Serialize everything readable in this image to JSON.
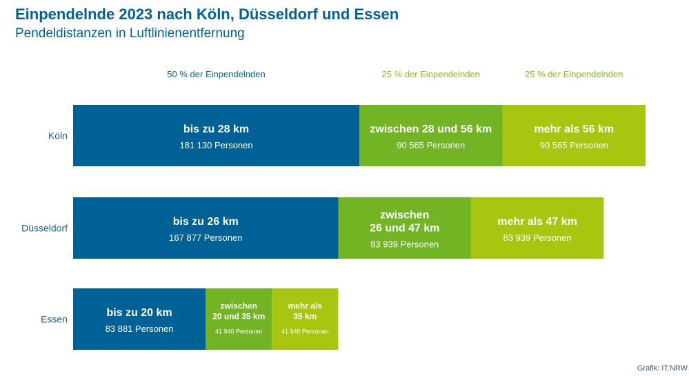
{
  "title": "Einpendelnde 2023 nach Köln, Düsseldorf und Essen",
  "subtitle": "Pendeldistanzen in Luftlinienentfernung",
  "credit": "Grafik: IT.NRW",
  "colors": {
    "blue": "#006197",
    "green": "#72b423",
    "lime": "#a8c610",
    "label_blue": "#006197",
    "label_green": "#85bc1f",
    "city_label": "#1f5f8f"
  },
  "chart_data": {
    "type": "bar",
    "orientation": "horizontal",
    "stacked": true,
    "unit": "Personen",
    "column_headers": [
      "50 % der Einpendelnden",
      "25 % der Einpendelnden",
      "25 % der Einpendelnden"
    ],
    "categories": [
      "Köln",
      "Düsseldorf",
      "Essen"
    ],
    "rows": [
      {
        "city": "Köln",
        "segments": [
          {
            "label": [
              "bis zu 28 km"
            ],
            "value": 181130,
            "value_text": "181 130 Personen",
            "color": "blue"
          },
          {
            "label": [
              "zwischen 28 und 56 km"
            ],
            "value": 90565,
            "value_text": "90 565 Personen",
            "color": "green"
          },
          {
            "label": [
              "mehr als 56 km"
            ],
            "value": 90565,
            "value_text": "90 565 Personen",
            "color": "lime"
          }
        ]
      },
      {
        "city": "Düsseldorf",
        "segments": [
          {
            "label": [
              "bis zu 26 km"
            ],
            "value": 167877,
            "value_text": "167 877 Personen",
            "color": "blue"
          },
          {
            "label": [
              "zwischen",
              "26 und 47 km"
            ],
            "value": 83939,
            "value_text": "83 939 Personen",
            "color": "green"
          },
          {
            "label": [
              "mehr als 47 km"
            ],
            "value": 83939,
            "value_text": "83 939 Personen",
            "color": "lime"
          }
        ]
      },
      {
        "city": "Essen",
        "segments": [
          {
            "label": [
              "bis zu 20 km"
            ],
            "value": 83881,
            "value_text": "83 881 Personen",
            "color": "blue"
          },
          {
            "label": [
              "zwischen",
              "20 und 35 km"
            ],
            "value": 41940,
            "value_text": "41 940 Personen",
            "color": "green"
          },
          {
            "label": [
              "mehr als",
              "35 km"
            ],
            "value": 41940,
            "value_text": "41 940 Personen",
            "color": "lime"
          }
        ]
      }
    ]
  }
}
